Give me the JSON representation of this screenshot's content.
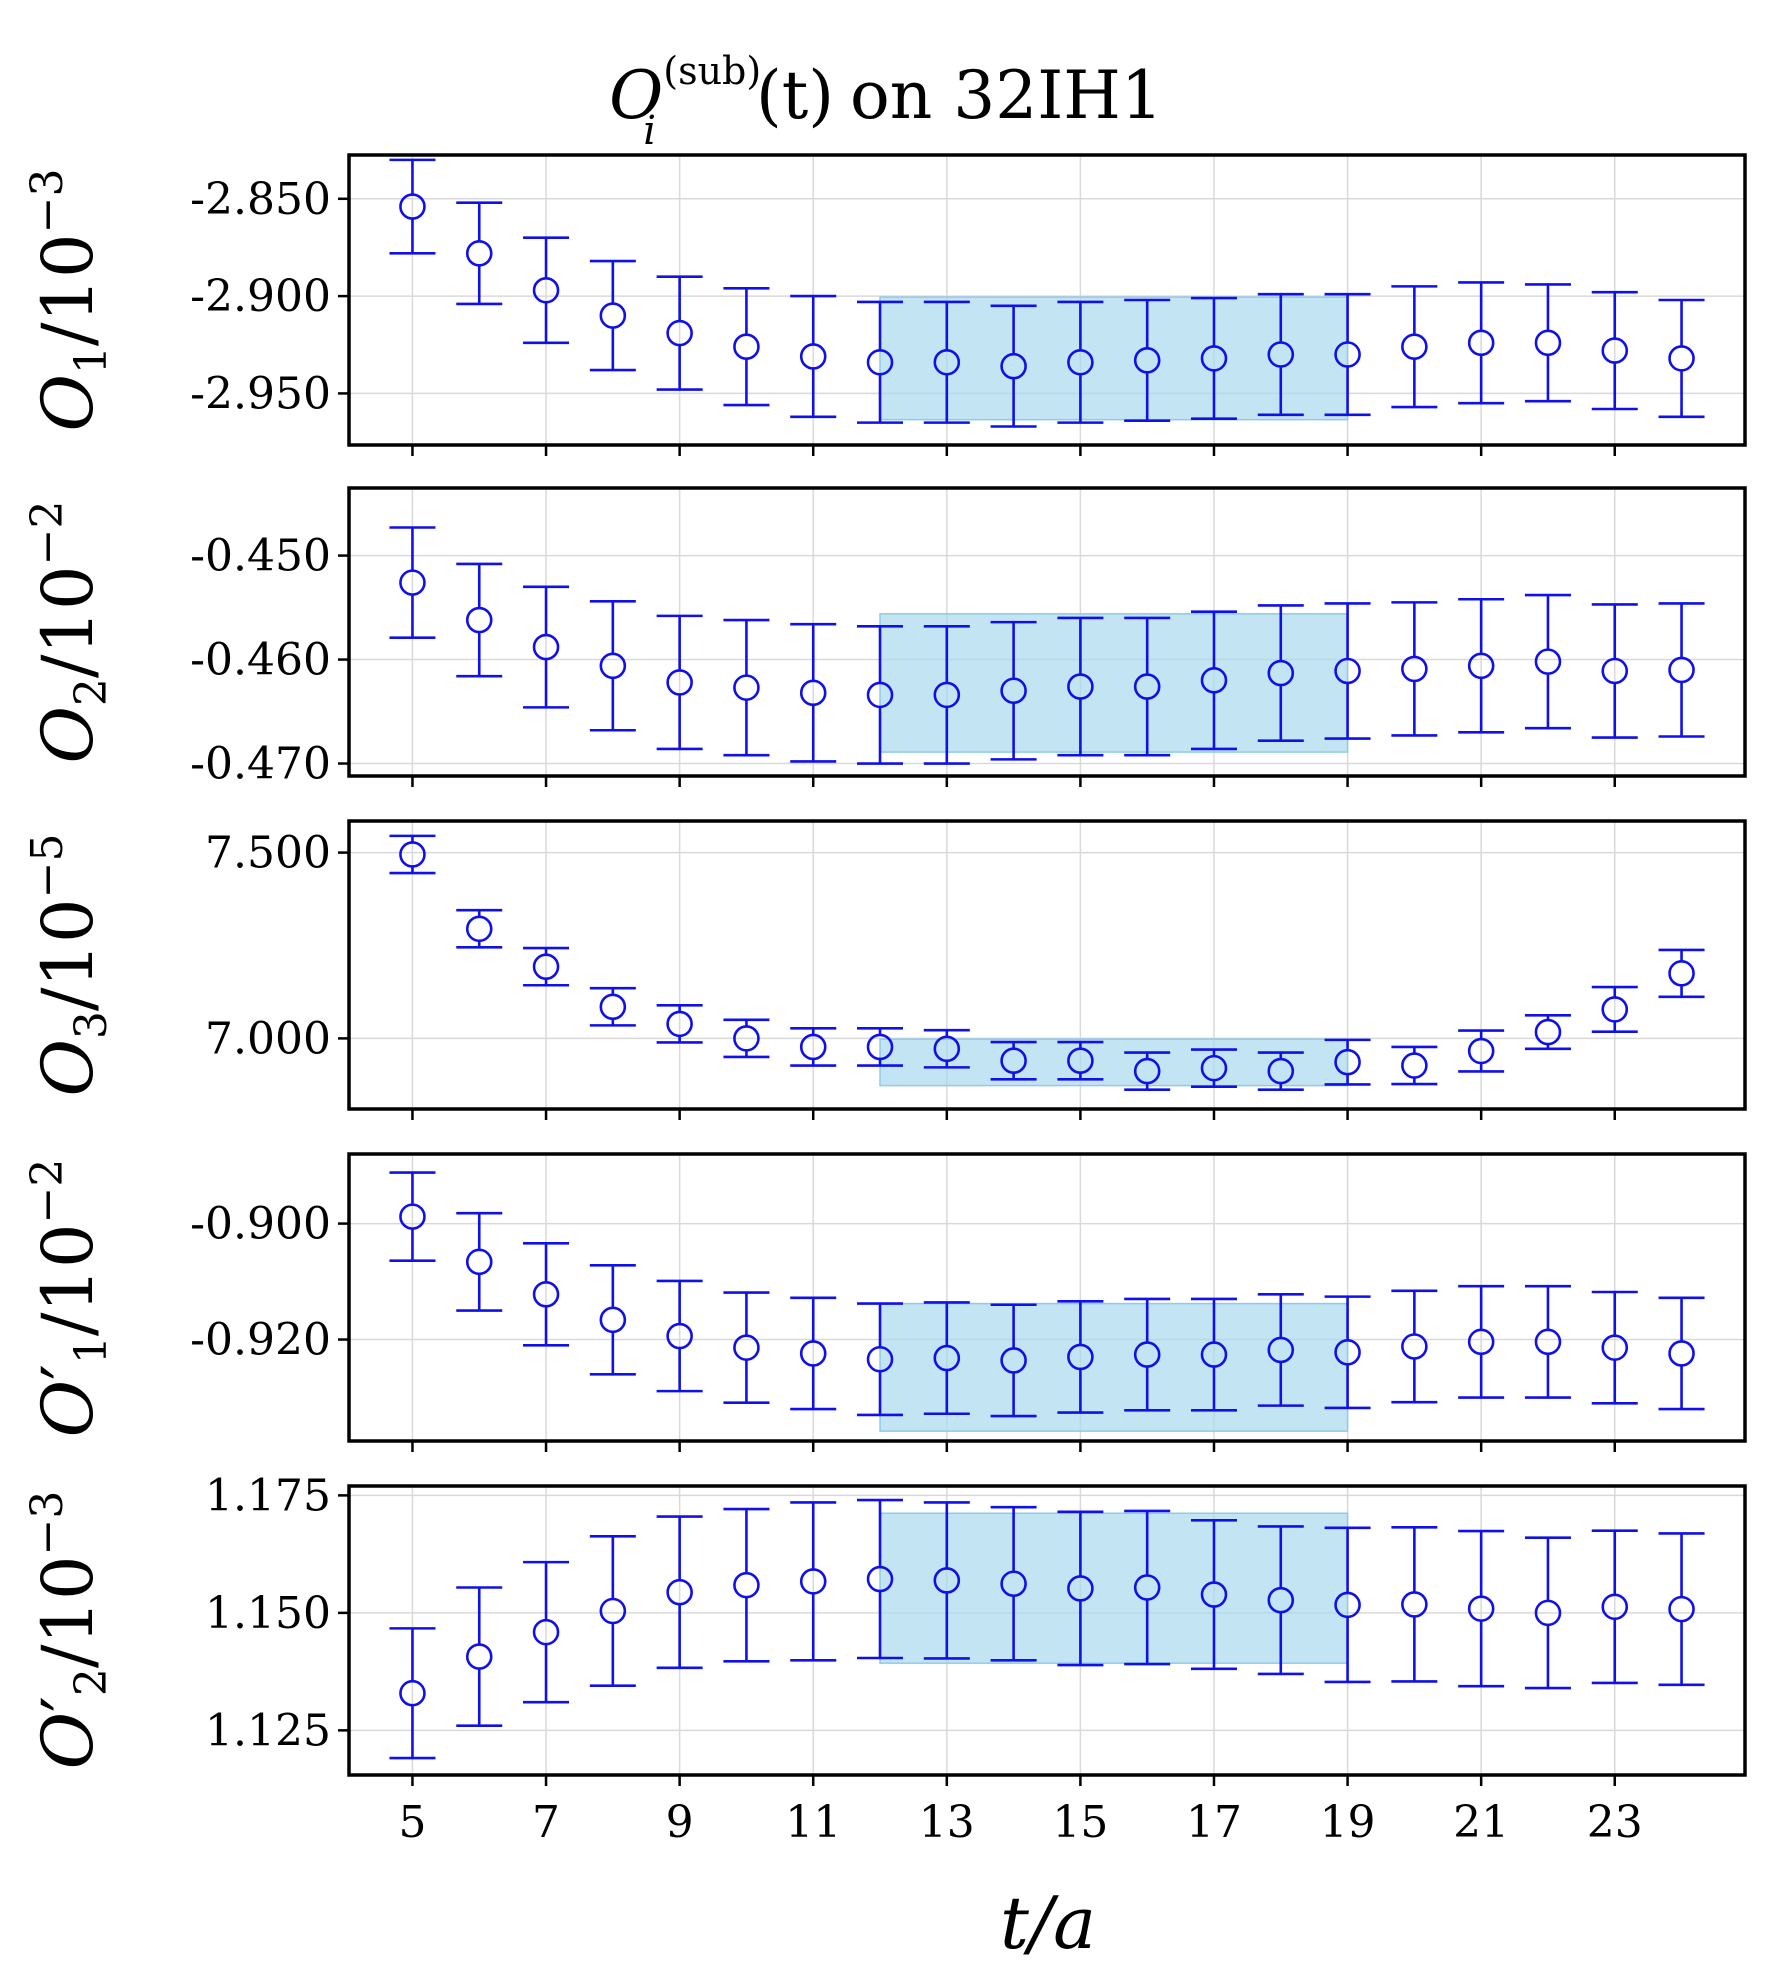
{
  "chart_data": {
    "type": "scatter",
    "title": "O_i^(sub)(t) on 32IH1",
    "title_parts": {
      "symbol": "O",
      "subscript": "i",
      "superscript": "(sub)",
      "arg": "(t)",
      "suffix": "on 32IH1"
    },
    "xlabel": "t/a",
    "x": [
      5,
      6,
      7,
      8,
      9,
      10,
      11,
      12,
      13,
      14,
      15,
      16,
      17,
      18,
      19,
      20,
      21,
      22,
      23,
      24
    ],
    "xlim": [
      4.05,
      24.95
    ],
    "xticks": [
      5,
      7,
      9,
      11,
      13,
      15,
      17,
      19,
      21,
      23
    ],
    "xtick_labels": [
      "5",
      "7",
      "9",
      "11",
      "13",
      "15",
      "17",
      "19",
      "21",
      "23"
    ],
    "grid": true,
    "series": [
      {
        "name": "O1",
        "ylabel": {
          "symbol": "O",
          "prime": "",
          "sub": "1",
          "unit": "/10",
          "exp": "−3"
        },
        "ylim": [
          -2.9765,
          -2.8275
        ],
        "yticks": [
          -2.85,
          -2.9,
          -2.95
        ],
        "ytick_labels": [
          "-2.850",
          "-2.900",
          "-2.950"
        ],
        "values": [
          -2.854,
          -2.878,
          -2.897,
          -2.91,
          -2.919,
          -2.926,
          -2.931,
          -2.934,
          -2.934,
          -2.936,
          -2.934,
          -2.933,
          -2.932,
          -2.93,
          -2.93,
          -2.926,
          -2.924,
          -2.924,
          -2.928,
          -2.932
        ],
        "errors": [
          0.024,
          0.026,
          0.027,
          0.028,
          0.029,
          0.03,
          0.031,
          0.031,
          0.031,
          0.031,
          0.031,
          0.031,
          0.031,
          0.031,
          0.031,
          0.031,
          0.031,
          0.03,
          0.03,
          0.03
        ],
        "fit_band": {
          "t_start": 12,
          "t_end": 19,
          "lower": -2.9635,
          "upper": -2.9005
        }
      },
      {
        "name": "O2",
        "ylabel": {
          "symbol": "O",
          "prime": "",
          "sub": "2",
          "unit": "/10",
          "exp": "−2"
        },
        "ylim": [
          -0.4712,
          -0.4435
        ],
        "yticks": [
          -0.45,
          -0.46,
          -0.47
        ],
        "ytick_labels": [
          "-0.450",
          "-0.460",
          "-0.470"
        ],
        "values": [
          -0.4526,
          -0.4562,
          -0.4588,
          -0.4606,
          -0.4622,
          -0.4627,
          -0.4632,
          -0.4634,
          -0.4634,
          -0.463,
          -0.4626,
          -0.4626,
          -0.462,
          -0.4613,
          -0.4611,
          -0.4609,
          -0.4606,
          -0.4602,
          -0.4611,
          -0.461
        ],
        "errors": [
          0.0053,
          0.0054,
          0.0058,
          0.0062,
          0.0064,
          0.0065,
          0.0066,
          0.0066,
          0.0066,
          0.0066,
          0.0066,
          0.0066,
          0.0066,
          0.0065,
          0.0065,
          0.0064,
          0.0064,
          0.0064,
          0.0064,
          0.0064
        ],
        "fit_band": {
          "t_start": 12,
          "t_end": 19,
          "lower": -0.4689,
          "upper": -0.4556
        }
      },
      {
        "name": "O3",
        "ylabel": {
          "symbol": "O",
          "prime": "",
          "sub": "3",
          "unit": "/10",
          "exp": "−5"
        },
        "ylim": [
          6.81,
          7.585
        ],
        "yticks": [
          7.5,
          7.0
        ],
        "ytick_labels": [
          "7.500",
          "7.000"
        ],
        "values": [
          7.495,
          7.295,
          7.193,
          7.085,
          7.039,
          7.0,
          6.977,
          6.977,
          6.972,
          6.94,
          6.94,
          6.912,
          6.92,
          6.912,
          6.936,
          6.927,
          6.966,
          7.017,
          7.078,
          7.175
        ],
        "errors": [
          0.05,
          0.05,
          0.05,
          0.05,
          0.05,
          0.05,
          0.05,
          0.05,
          0.05,
          0.05,
          0.05,
          0.05,
          0.05,
          0.05,
          0.06,
          0.05,
          0.055,
          0.045,
          0.06,
          0.063
        ],
        "fit_band": {
          "t_start": 12,
          "t_end": 19,
          "lower": 6.873,
          "upper": 6.998
        }
      },
      {
        "name": "O1'",
        "ylabel": {
          "symbol": "O",
          "prime": "′",
          "sub": "1",
          "unit": "/10",
          "exp": "−2"
        },
        "ylim": [
          -0.9375,
          -0.888
        ],
        "yticks": [
          -0.9,
          -0.92
        ],
        "ytick_labels": [
          "-0.900",
          "-0.920"
        ],
        "values": [
          -0.8988,
          -0.9066,
          -0.9122,
          -0.9166,
          -0.9194,
          -0.9214,
          -0.9224,
          -0.9234,
          -0.9232,
          -0.9236,
          -0.923,
          -0.9226,
          -0.9226,
          -0.9218,
          -0.9222,
          -0.9212,
          -0.9204,
          -0.9204,
          -0.9214,
          -0.9224
        ],
        "errors": [
          0.0076,
          0.0084,
          0.0088,
          0.0094,
          0.0095,
          0.0095,
          0.0096,
          0.0096,
          0.0096,
          0.0096,
          0.0096,
          0.0096,
          0.0096,
          0.0096,
          0.0096,
          0.0096,
          0.0096,
          0.0096,
          0.0096,
          0.0096
        ],
        "fit_band": {
          "t_start": 12,
          "t_end": 19,
          "lower": -0.9358,
          "upper": -0.9138
        }
      },
      {
        "name": "O2'",
        "ylabel": {
          "symbol": "O",
          "prime": "′",
          "sub": "2",
          "unit": "/10",
          "exp": "−3"
        },
        "ylim": [
          1.1155,
          1.177
        ],
        "yticks": [
          1.175,
          1.15,
          1.125
        ],
        "ytick_labels": [
          "1.175",
          "1.150",
          "1.125"
        ],
        "values": [
          1.1329,
          1.1407,
          1.1459,
          1.1504,
          1.1544,
          1.1559,
          1.1567,
          1.1572,
          1.1569,
          1.1562,
          1.1552,
          1.1554,
          1.1539,
          1.1527,
          1.1517,
          1.1518,
          1.1509,
          1.15,
          1.1513,
          1.1508
        ],
        "errors": [
          0.0138,
          0.0147,
          0.0149,
          0.0159,
          0.0161,
          0.0162,
          0.0168,
          0.0168,
          0.0166,
          0.0163,
          0.0163,
          0.0163,
          0.0158,
          0.0157,
          0.0164,
          0.0164,
          0.0165,
          0.016,
          0.0162,
          0.0161
        ],
        "fit_band": {
          "t_start": 12,
          "t_end": 19,
          "lower": 1.1393,
          "upper": 1.1712
        }
      }
    ]
  }
}
